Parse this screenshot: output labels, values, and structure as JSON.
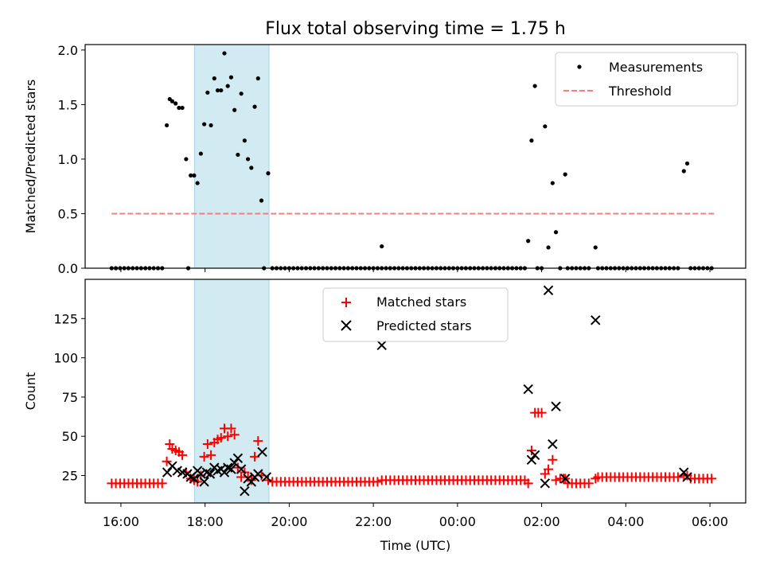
{
  "chart_data": {
    "title": "Flux total observing time = 1.75 h",
    "x_axis": {
      "label": "Time (UTC)",
      "unit": "hours since 16:00 UTC",
      "range": [
        -0.85,
        14.85
      ],
      "ticks": [
        {
          "v": 0,
          "label": "16:00"
        },
        {
          "v": 2,
          "label": "18:00"
        },
        {
          "v": 4,
          "label": "20:00"
        },
        {
          "v": 6,
          "label": "22:00"
        },
        {
          "v": 8,
          "label": "00:00"
        },
        {
          "v": 10,
          "label": "02:00"
        },
        {
          "v": 12,
          "label": "04:00"
        },
        {
          "v": 14,
          "label": "06:00"
        }
      ]
    },
    "highlight_span": [
      1.75,
      3.52
    ],
    "panels": [
      {
        "type": "scatter",
        "ylabel": "Matched/Predicted stars",
        "ylim": [
          0,
          2.05
        ],
        "yticks": [
          {
            "v": 0,
            "label": "0.0"
          },
          {
            "v": 0.5,
            "label": "0.5"
          },
          {
            "v": 1.0,
            "label": "1.0"
          },
          {
            "v": 1.5,
            "label": "1.5"
          },
          {
            "v": 2.0,
            "label": "2.0"
          }
        ],
        "legend": {
          "location": "upper right",
          "entries": [
            "Measurements",
            "Threshold"
          ]
        },
        "threshold": {
          "name": "Threshold",
          "value": 0.5,
          "x_range": [
            -0.22,
            14.1
          ],
          "color": "#f08080"
        },
        "series": [
          {
            "name": "Measurements",
            "marker": "dot",
            "color": "#000000",
            "nonzero_points": [
              [
                1.09,
                1.31
              ],
              [
                1.16,
                1.55
              ],
              [
                1.22,
                1.53
              ],
              [
                1.3,
                1.51
              ],
              [
                1.38,
                1.47
              ],
              [
                1.46,
                1.47
              ],
              [
                1.55,
                1.0
              ],
              [
                1.66,
                0.85
              ],
              [
                1.74,
                0.85
              ],
              [
                1.82,
                0.78
              ],
              [
                1.9,
                1.05
              ],
              [
                1.98,
                1.32
              ],
              [
                2.06,
                1.61
              ],
              [
                2.14,
                1.31
              ],
              [
                2.22,
                1.74
              ],
              [
                2.3,
                1.63
              ],
              [
                2.38,
                1.63
              ],
              [
                2.46,
                1.97
              ],
              [
                2.54,
                1.67
              ],
              [
                2.62,
                1.75
              ],
              [
                2.7,
                1.45
              ],
              [
                2.78,
                1.04
              ],
              [
                2.86,
                1.6
              ],
              [
                2.94,
                1.17
              ],
              [
                3.02,
                1.0
              ],
              [
                3.1,
                0.92
              ],
              [
                3.18,
                1.48
              ],
              [
                3.26,
                1.74
              ],
              [
                3.34,
                0.62
              ],
              [
                3.5,
                0.87
              ],
              [
                6.2,
                0.2
              ],
              [
                9.68,
                0.25
              ],
              [
                9.76,
                1.17
              ],
              [
                9.84,
                1.67
              ],
              [
                10.08,
                1.3
              ],
              [
                10.16,
                0.19
              ],
              [
                10.26,
                0.78
              ],
              [
                10.34,
                0.33
              ],
              [
                10.56,
                0.86
              ],
              [
                11.28,
                0.19
              ],
              [
                13.38,
                0.89
              ],
              [
                13.46,
                0.96
              ]
            ],
            "zero_runs": [
              [
                -0.22,
                1.0,
                0.1
              ],
              [
                1.6,
                1.6,
                0.1
              ],
              [
                3.4,
                3.4,
                0.1
              ],
              [
                3.6,
                9.65,
                0.1
              ],
              [
                9.9,
                10.04,
                0.1
              ],
              [
                10.44,
                10.52,
                0.1
              ],
              [
                10.62,
                11.2,
                0.1
              ],
              [
                11.34,
                13.3,
                0.1
              ],
              [
                13.54,
                14.1,
                0.1
              ]
            ]
          }
        ]
      },
      {
        "type": "scatter",
        "ylabel": "Count",
        "ylim": [
          7.5,
          150
        ],
        "yticks": [
          {
            "v": 25,
            "label": "25"
          },
          {
            "v": 50,
            "label": "50"
          },
          {
            "v": 75,
            "label": "75"
          },
          {
            "v": 100,
            "label": "100"
          },
          {
            "v": 125,
            "label": "125"
          }
        ],
        "legend": {
          "location": "upper center",
          "entries": [
            "Matched stars",
            "Predicted stars"
          ]
        },
        "series": [
          {
            "name": "Matched stars",
            "marker": "plus",
            "color": "#ff0000",
            "points": [
              [
                1.09,
                34
              ],
              [
                1.16,
                45
              ],
              [
                1.22,
                42
              ],
              [
                1.3,
                41
              ],
              [
                1.38,
                40
              ],
              [
                1.46,
                38
              ],
              [
                1.55,
                27
              ],
              [
                1.66,
                23
              ],
              [
                1.74,
                22
              ],
              [
                1.82,
                21
              ],
              [
                1.9,
                25
              ],
              [
                1.98,
                37
              ],
              [
                2.06,
                45
              ],
              [
                2.14,
                38
              ],
              [
                2.22,
                46
              ],
              [
                2.3,
                48
              ],
              [
                2.38,
                49
              ],
              [
                2.46,
                55
              ],
              [
                2.54,
                50
              ],
              [
                2.62,
                55
              ],
              [
                2.7,
                51
              ],
              [
                2.78,
                30
              ],
              [
                2.86,
                24
              ],
              [
                2.94,
                27
              ],
              [
                3.02,
                24
              ],
              [
                3.1,
                22
              ],
              [
                3.18,
                37
              ],
              [
                3.26,
                47
              ],
              [
                3.34,
                25
              ],
              [
                3.5,
                22
              ],
              [
                9.68,
                20
              ],
              [
                9.76,
                41
              ],
              [
                9.84,
                65
              ],
              [
                9.92,
                65
              ],
              [
                10.0,
                65
              ],
              [
                10.08,
                26
              ],
              [
                10.16,
                29
              ],
              [
                10.26,
                35
              ],
              [
                10.34,
                22
              ],
              [
                10.56,
                23
              ],
              [
                11.28,
                23
              ],
              [
                13.38,
                25
              ],
              [
                13.46,
                25
              ]
            ],
            "runs": [
              [
                -0.22,
                1.0,
                0.1,
                20
              ],
              [
                3.6,
                6.1,
                0.1,
                21
              ],
              [
                6.2,
                9.6,
                0.1,
                22
              ],
              [
                10.44,
                10.52,
                0.08,
                23
              ],
              [
                10.62,
                11.2,
                0.1,
                20
              ],
              [
                11.34,
                13.3,
                0.1,
                24
              ],
              [
                13.54,
                14.1,
                0.1,
                23
              ]
            ]
          },
          {
            "name": "Predicted stars",
            "marker": "x",
            "color": "#000000",
            "points": [
              [
                1.1,
                27
              ],
              [
                1.22,
                31
              ],
              [
                1.34,
                28
              ],
              [
                1.46,
                27
              ],
              [
                1.58,
                26
              ],
              [
                1.66,
                24
              ],
              [
                1.74,
                23
              ],
              [
                1.82,
                28
              ],
              [
                1.9,
                26
              ],
              [
                1.98,
                21
              ],
              [
                2.04,
                27
              ],
              [
                2.12,
                26
              ],
              [
                2.22,
                30
              ],
              [
                2.3,
                28
              ],
              [
                2.38,
                29
              ],
              [
                2.46,
                27
              ],
              [
                2.54,
                30
              ],
              [
                2.62,
                29
              ],
              [
                2.7,
                33
              ],
              [
                2.78,
                36
              ],
              [
                2.86,
                29
              ],
              [
                2.94,
                15
              ],
              [
                3.02,
                23
              ],
              [
                3.1,
                21
              ],
              [
                3.18,
                24
              ],
              [
                3.26,
                26
              ],
              [
                3.36,
                40
              ],
              [
                3.46,
                24
              ],
              [
                6.2,
                108
              ],
              [
                9.68,
                80
              ],
              [
                9.76,
                35
              ],
              [
                9.84,
                38
              ],
              [
                10.08,
                20
              ],
              [
                10.16,
                143
              ],
              [
                10.26,
                45
              ],
              [
                10.34,
                69
              ],
              [
                10.56,
                23
              ],
              [
                11.28,
                124
              ],
              [
                13.38,
                27
              ],
              [
                13.46,
                24
              ]
            ]
          }
        ]
      }
    ]
  }
}
